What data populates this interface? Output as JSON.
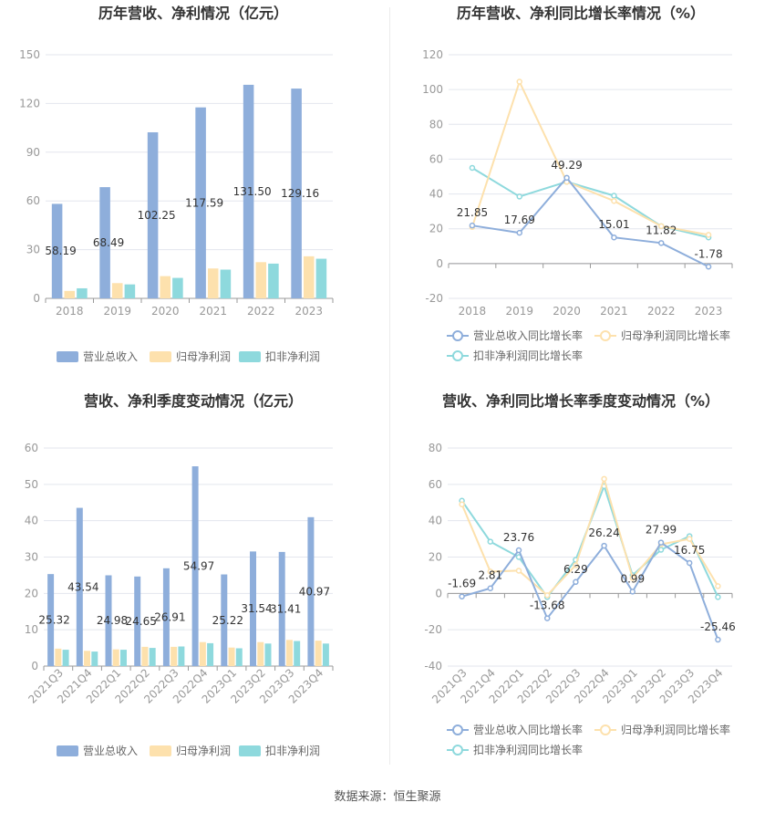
{
  "source": "数据来源：恒生聚源",
  "chart_data": [
    {
      "type": "bar",
      "title": "历年营收、净利情况（亿元）",
      "categories": [
        "2018",
        "2019",
        "2020",
        "2021",
        "2022",
        "2023"
      ],
      "ylim": [
        0,
        150
      ],
      "yticks": [
        0,
        30,
        60,
        90,
        120,
        150
      ],
      "grid": true,
      "legend": "bottom",
      "colors": [
        "#8eaedb",
        "#fde1ad",
        "#8ed9dd"
      ],
      "series": [
        {
          "name": "营业总收入",
          "values": [
            58.19,
            68.49,
            102.25,
            117.59,
            131.5,
            129.16
          ],
          "labels": [
            "58.19",
            "68.49",
            "102.25",
            "117.59",
            "131.50",
            "129.16"
          ]
        },
        {
          "name": "归母净利润",
          "values": [
            4.6,
            9.4,
            13.7,
            18.4,
            22.3,
            25.9
          ]
        },
        {
          "name": "扣非净利润",
          "values": [
            6.2,
            8.6,
            12.6,
            17.7,
            21.4,
            24.4
          ]
        }
      ]
    },
    {
      "type": "line",
      "title": "历年营收、净利同比增长率情况（%）",
      "categories": [
        "2018",
        "2019",
        "2020",
        "2021",
        "2022",
        "2023"
      ],
      "ylim": [
        -20,
        120
      ],
      "yticks": [
        -20,
        0,
        20,
        40,
        60,
        80,
        100,
        120
      ],
      "grid": true,
      "legend": "bottom",
      "colors": [
        "#8eaedb",
        "#fde1ad",
        "#8ed9dd"
      ],
      "series": [
        {
          "name": "营业总收入同比增长率",
          "values": [
            21.85,
            17.69,
            49.29,
            15.01,
            11.82,
            -1.78
          ],
          "labels": [
            "21.85",
            "17.69",
            "49.29",
            "15.01",
            "11.82",
            "-1.78"
          ]
        },
        {
          "name": "归母净利润同比增长率",
          "values": [
            21.0,
            104.5,
            47.0,
            36.0,
            21.5,
            16.5
          ]
        },
        {
          "name": "扣非净利润同比增长率",
          "values": [
            55.0,
            38.5,
            47.0,
            39.0,
            21.5,
            15.0
          ]
        }
      ]
    },
    {
      "type": "bar",
      "title": "营收、净利季度变动情况（亿元）",
      "categories": [
        "2021Q3",
        "2021Q4",
        "2022Q1",
        "2022Q2",
        "2022Q3",
        "2022Q4",
        "2023Q1",
        "2023Q2",
        "2023Q3",
        "2023Q4"
      ],
      "ylim": [
        0,
        60
      ],
      "yticks": [
        0,
        10,
        20,
        30,
        40,
        50,
        60
      ],
      "grid": true,
      "legend": "bottom",
      "colors": [
        "#8eaedb",
        "#fde1ad",
        "#8ed9dd"
      ],
      "series": [
        {
          "name": "营业总收入",
          "values": [
            25.32,
            43.54,
            24.98,
            24.65,
            26.91,
            54.97,
            25.22,
            31.54,
            31.41,
            40.97
          ],
          "labels": [
            "25.32",
            "43.54",
            "24.98",
            "24.65",
            "26.91",
            "54.97",
            "25.22",
            "31.54",
            "31.41",
            "40.97"
          ]
        },
        {
          "name": "归母净利润",
          "values": [
            4.8,
            4.2,
            4.6,
            5.3,
            5.3,
            6.6,
            5.1,
            6.6,
            7.2,
            7.0
          ]
        },
        {
          "name": "扣非净利润",
          "values": [
            4.5,
            4.0,
            4.5,
            5.0,
            5.4,
            6.3,
            4.9,
            6.2,
            6.9,
            6.2
          ]
        }
      ]
    },
    {
      "type": "line",
      "title": "营收、净利同比增长率季度变动情况（%）",
      "categories": [
        "2021Q3",
        "2021Q4",
        "2022Q1",
        "2022Q2",
        "2022Q3",
        "2022Q4",
        "2023Q1",
        "2023Q2",
        "2023Q3",
        "2023Q4"
      ],
      "ylim": [
        -40,
        80
      ],
      "yticks": [
        -40,
        -20,
        0,
        20,
        40,
        60,
        80
      ],
      "grid": true,
      "legend": "bottom",
      "colors": [
        "#8eaedb",
        "#fde1ad",
        "#8ed9dd"
      ],
      "series": [
        {
          "name": "营业总收入同比增长率",
          "values": [
            -1.69,
            2.81,
            23.76,
            -13.68,
            6.29,
            26.24,
            0.99,
            27.99,
            16.75,
            -25.46
          ],
          "labels": [
            "-1.69",
            "2.81",
            "23.76",
            "-13.68",
            "6.29",
            "26.24",
            "0.99",
            "27.99",
            "16.75",
            "-25.46"
          ]
        },
        {
          "name": "归母净利润同比增长率",
          "values": [
            49.0,
            12.0,
            12.5,
            -1.0,
            15.5,
            63.0,
            8.5,
            27.0,
            30.0,
            4.0
          ]
        },
        {
          "name": "扣非净利润同比增长率",
          "values": [
            51.0,
            28.5,
            20.0,
            -2.0,
            18.5,
            59.0,
            10.0,
            24.0,
            31.5,
            -2.0
          ]
        }
      ]
    }
  ]
}
